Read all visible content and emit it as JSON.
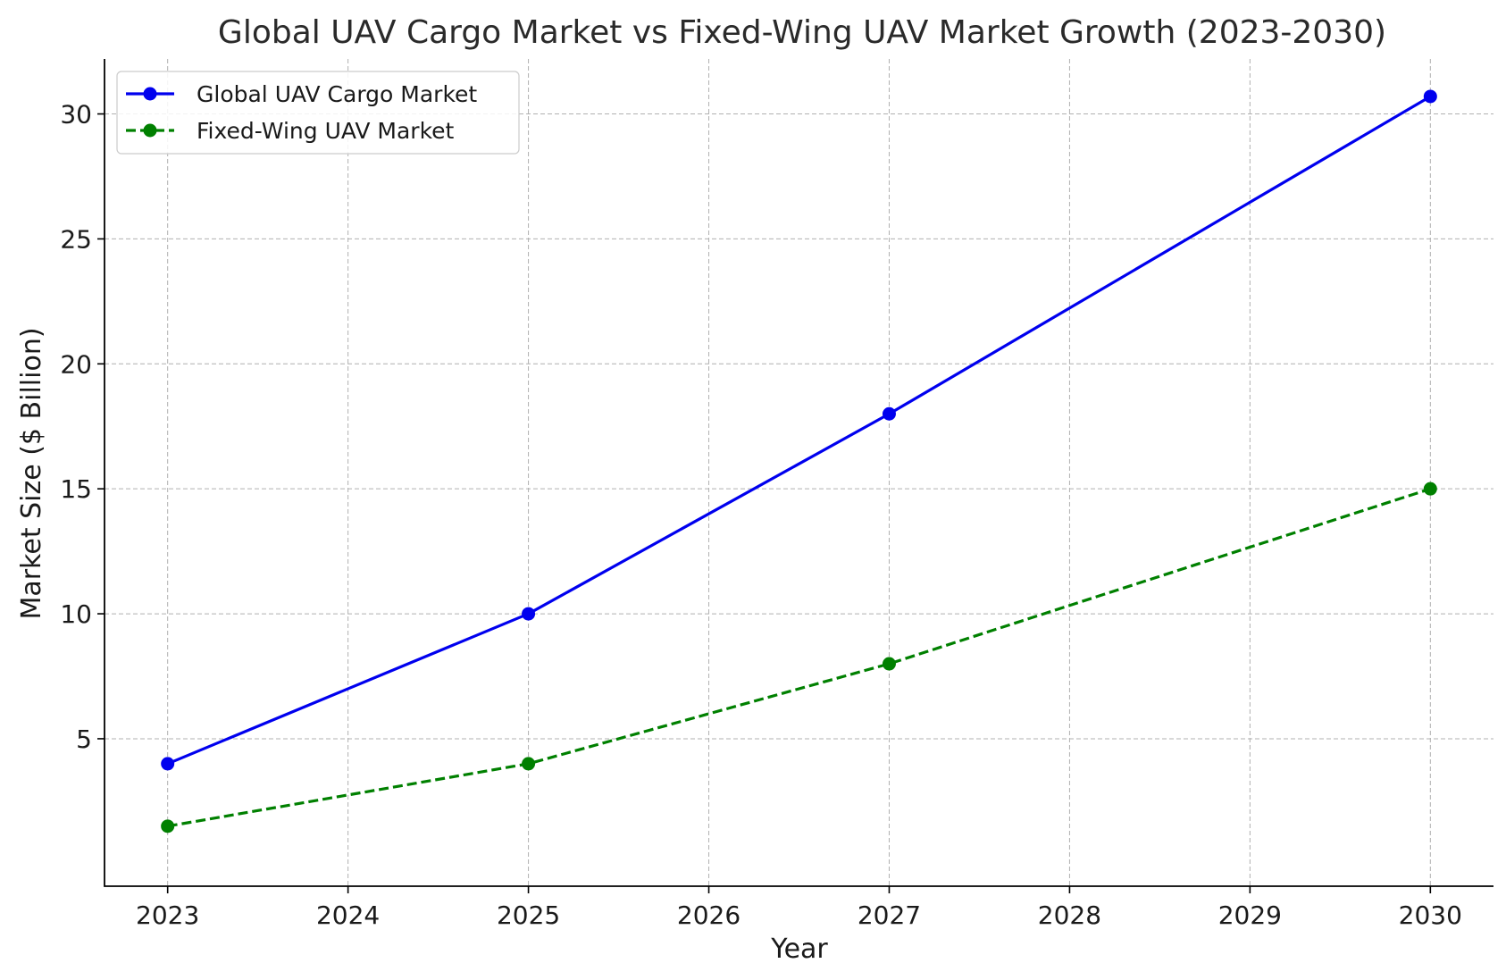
{
  "chart_data": {
    "type": "line",
    "title": "Global UAV Cargo Market vs Fixed-Wing UAV Market Growth (2023-2030)",
    "xlabel": "Year",
    "ylabel": "Market Size ($ Billion)",
    "x_ticks": [
      "2023",
      "2024",
      "2025",
      "2026",
      "2027",
      "2028",
      "2029",
      "2030"
    ],
    "y_ticks": [
      "5",
      "10",
      "15",
      "20",
      "25",
      "30"
    ],
    "xlim": [
      2022.65,
      2030.35
    ],
    "ylim": [
      -0.9,
      32.2
    ],
    "grid": true,
    "legend_position": "top-left",
    "series": [
      {
        "name": "Global UAV Cargo Market",
        "x": [
          2023,
          2025,
          2027,
          2030
        ],
        "values": [
          4,
          10,
          18,
          30.7
        ],
        "color": "#0000ee",
        "line_style": "solid",
        "marker": "circle"
      },
      {
        "name": "Fixed-Wing UAV Market",
        "x": [
          2023,
          2025,
          2027,
          2030
        ],
        "values": [
          1.5,
          4,
          8,
          15
        ],
        "color": "#008000",
        "line_style": "dashed",
        "marker": "circle"
      }
    ]
  }
}
